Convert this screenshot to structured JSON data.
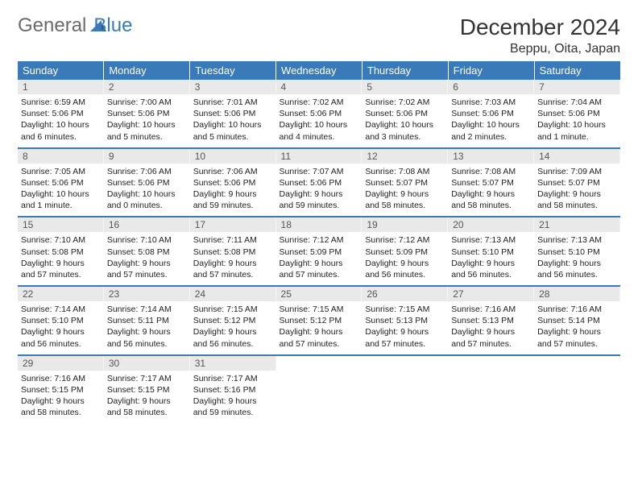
{
  "logo": {
    "part1": "General",
    "part2": "Blue"
  },
  "title": "December 2024",
  "location": "Beppu, Oita, Japan",
  "colors": {
    "header_bg": "#3a7ab8",
    "header_fg": "#ffffff",
    "daynum_bg": "#e9e9e9",
    "text": "#222222",
    "logo_gray": "#6a6a6a",
    "logo_blue": "#3a7ab8"
  },
  "weekdays": [
    "Sunday",
    "Monday",
    "Tuesday",
    "Wednesday",
    "Thursday",
    "Friday",
    "Saturday"
  ],
  "weeks": [
    [
      {
        "n": "1",
        "sr": "6:59 AM",
        "ss": "5:06 PM",
        "dl": "10 hours and 6 minutes."
      },
      {
        "n": "2",
        "sr": "7:00 AM",
        "ss": "5:06 PM",
        "dl": "10 hours and 5 minutes."
      },
      {
        "n": "3",
        "sr": "7:01 AM",
        "ss": "5:06 PM",
        "dl": "10 hours and 5 minutes."
      },
      {
        "n": "4",
        "sr": "7:02 AM",
        "ss": "5:06 PM",
        "dl": "10 hours and 4 minutes."
      },
      {
        "n": "5",
        "sr": "7:02 AM",
        "ss": "5:06 PM",
        "dl": "10 hours and 3 minutes."
      },
      {
        "n": "6",
        "sr": "7:03 AM",
        "ss": "5:06 PM",
        "dl": "10 hours and 2 minutes."
      },
      {
        "n": "7",
        "sr": "7:04 AM",
        "ss": "5:06 PM",
        "dl": "10 hours and 1 minute."
      }
    ],
    [
      {
        "n": "8",
        "sr": "7:05 AM",
        "ss": "5:06 PM",
        "dl": "10 hours and 1 minute."
      },
      {
        "n": "9",
        "sr": "7:06 AM",
        "ss": "5:06 PM",
        "dl": "10 hours and 0 minutes."
      },
      {
        "n": "10",
        "sr": "7:06 AM",
        "ss": "5:06 PM",
        "dl": "9 hours and 59 minutes."
      },
      {
        "n": "11",
        "sr": "7:07 AM",
        "ss": "5:06 PM",
        "dl": "9 hours and 59 minutes."
      },
      {
        "n": "12",
        "sr": "7:08 AM",
        "ss": "5:07 PM",
        "dl": "9 hours and 58 minutes."
      },
      {
        "n": "13",
        "sr": "7:08 AM",
        "ss": "5:07 PM",
        "dl": "9 hours and 58 minutes."
      },
      {
        "n": "14",
        "sr": "7:09 AM",
        "ss": "5:07 PM",
        "dl": "9 hours and 58 minutes."
      }
    ],
    [
      {
        "n": "15",
        "sr": "7:10 AM",
        "ss": "5:08 PM",
        "dl": "9 hours and 57 minutes."
      },
      {
        "n": "16",
        "sr": "7:10 AM",
        "ss": "5:08 PM",
        "dl": "9 hours and 57 minutes."
      },
      {
        "n": "17",
        "sr": "7:11 AM",
        "ss": "5:08 PM",
        "dl": "9 hours and 57 minutes."
      },
      {
        "n": "18",
        "sr": "7:12 AM",
        "ss": "5:09 PM",
        "dl": "9 hours and 57 minutes."
      },
      {
        "n": "19",
        "sr": "7:12 AM",
        "ss": "5:09 PM",
        "dl": "9 hours and 56 minutes."
      },
      {
        "n": "20",
        "sr": "7:13 AM",
        "ss": "5:10 PM",
        "dl": "9 hours and 56 minutes."
      },
      {
        "n": "21",
        "sr": "7:13 AM",
        "ss": "5:10 PM",
        "dl": "9 hours and 56 minutes."
      }
    ],
    [
      {
        "n": "22",
        "sr": "7:14 AM",
        "ss": "5:10 PM",
        "dl": "9 hours and 56 minutes."
      },
      {
        "n": "23",
        "sr": "7:14 AM",
        "ss": "5:11 PM",
        "dl": "9 hours and 56 minutes."
      },
      {
        "n": "24",
        "sr": "7:15 AM",
        "ss": "5:12 PM",
        "dl": "9 hours and 56 minutes."
      },
      {
        "n": "25",
        "sr": "7:15 AM",
        "ss": "5:12 PM",
        "dl": "9 hours and 57 minutes."
      },
      {
        "n": "26",
        "sr": "7:15 AM",
        "ss": "5:13 PM",
        "dl": "9 hours and 57 minutes."
      },
      {
        "n": "27",
        "sr": "7:16 AM",
        "ss": "5:13 PM",
        "dl": "9 hours and 57 minutes."
      },
      {
        "n": "28",
        "sr": "7:16 AM",
        "ss": "5:14 PM",
        "dl": "9 hours and 57 minutes."
      }
    ],
    [
      {
        "n": "29",
        "sr": "7:16 AM",
        "ss": "5:15 PM",
        "dl": "9 hours and 58 minutes."
      },
      {
        "n": "30",
        "sr": "7:17 AM",
        "ss": "5:15 PM",
        "dl": "9 hours and 58 minutes."
      },
      {
        "n": "31",
        "sr": "7:17 AM",
        "ss": "5:16 PM",
        "dl": "9 hours and 59 minutes."
      },
      null,
      null,
      null,
      null
    ]
  ],
  "labels": {
    "sunrise": "Sunrise:",
    "sunset": "Sunset:",
    "daylight": "Daylight:"
  }
}
